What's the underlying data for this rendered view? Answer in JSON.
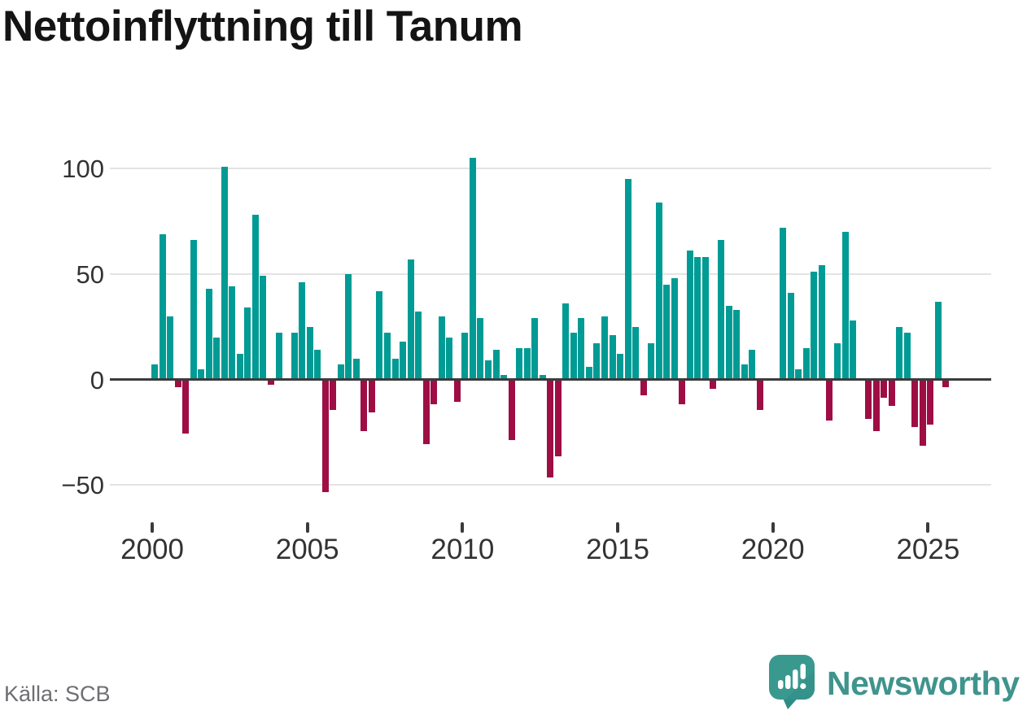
{
  "title": "Nettoinflyttning till Tanum",
  "source": "Källa: SCB",
  "logo": {
    "text": "Newsworthy"
  },
  "colors": {
    "positive_bar": "#009b94",
    "negative_bar": "#9e0e45",
    "zero_axis": "#3b3b3b",
    "gridline": "#e3e3e3",
    "tick_label": "#333333",
    "source_text": "#6e6e73",
    "logo_teal": "#3f948d",
    "logo_icon": "#3a998f",
    "logo_icon_dark": "#2f8c85"
  },
  "chart_data": {
    "type": "bar",
    "title": "Nettoinflyttning till Tanum",
    "x_unit": "quarter",
    "grid": "horizontal gridlines only, dark zero baseline",
    "legend": "none",
    "ylim": [
      -60,
      110
    ],
    "yticks": [
      100,
      50,
      0,
      -50
    ],
    "xticks": [
      2000,
      2005,
      2010,
      2015,
      2020,
      2025
    ],
    "color_rule": "teal when value >= 0, dark crimson when value < 0, no bar when 0",
    "quarters": [
      "2000 Q1",
      "2000 Q2",
      "2000 Q3",
      "2000 Q4",
      "2001 Q1",
      "2001 Q2",
      "2001 Q3",
      "2001 Q4",
      "2002 Q1",
      "2002 Q2",
      "2002 Q3",
      "2002 Q4",
      "2003 Q1",
      "2003 Q2",
      "2003 Q3",
      "2003 Q4",
      "2004 Q1",
      "2004 Q2",
      "2004 Q3",
      "2004 Q4",
      "2005 Q1",
      "2005 Q2",
      "2005 Q3",
      "2005 Q4",
      "2006 Q1",
      "2006 Q2",
      "2006 Q3",
      "2006 Q4",
      "2007 Q1",
      "2007 Q2",
      "2007 Q3",
      "2007 Q4",
      "2008 Q1",
      "2008 Q2",
      "2008 Q3",
      "2008 Q4",
      "2009 Q1",
      "2009 Q2",
      "2009 Q3",
      "2009 Q4",
      "2010 Q1",
      "2010 Q2",
      "2010 Q3",
      "2010 Q4",
      "2011 Q1",
      "2011 Q2",
      "2011 Q3",
      "2011 Q4",
      "2012 Q1",
      "2012 Q2",
      "2012 Q3",
      "2012 Q4",
      "2013 Q1",
      "2013 Q2",
      "2013 Q3",
      "2013 Q4",
      "2014 Q1",
      "2014 Q2",
      "2014 Q3",
      "2014 Q4",
      "2015 Q1",
      "2015 Q2",
      "2015 Q3",
      "2015 Q4",
      "2016 Q1",
      "2016 Q2",
      "2016 Q3",
      "2016 Q4",
      "2017 Q1",
      "2017 Q2",
      "2017 Q3",
      "2017 Q4",
      "2018 Q1",
      "2018 Q2",
      "2018 Q3",
      "2018 Q4",
      "2019 Q1",
      "2019 Q2",
      "2019 Q3",
      "2019 Q4",
      "2020 Q1",
      "2020 Q2",
      "2020 Q3",
      "2020 Q4",
      "2021 Q1",
      "2021 Q2",
      "2021 Q3",
      "2021 Q4",
      "2022 Q1",
      "2022 Q2",
      "2022 Q3",
      "2022 Q4",
      "2023 Q1",
      "2023 Q2",
      "2023 Q3",
      "2023 Q4",
      "2024 Q1",
      "2024 Q2",
      "2024 Q3",
      "2024 Q4",
      "2025 Q1",
      "2025 Q2",
      "2025 Q3"
    ],
    "values": [
      7,
      69,
      30,
      -3,
      -25,
      66,
      5,
      43,
      20,
      101,
      44,
      12,
      34,
      78,
      49,
      -2,
      22,
      0,
      22,
      46,
      25,
      14,
      -53,
      -14,
      7,
      50,
      10,
      -24,
      -15,
      42,
      22,
      10,
      18,
      57,
      32,
      -30,
      -11,
      30,
      20,
      -10,
      22,
      105,
      29,
      9,
      14,
      2,
      -28,
      15,
      15,
      29,
      2,
      -46,
      -36,
      36,
      22,
      29,
      6,
      17,
      30,
      21,
      12,
      95,
      25,
      -7,
      17,
      84,
      45,
      48,
      -11,
      61,
      58,
      58,
      -4,
      66,
      35,
      33,
      7,
      14,
      -14,
      0,
      0,
      72,
      41,
      5,
      15,
      51,
      54,
      -19,
      17,
      70,
      28,
      0,
      -18,
      -24,
      -8,
      -12,
      25,
      22,
      -22,
      -31,
      -21,
      37,
      -3
    ]
  }
}
